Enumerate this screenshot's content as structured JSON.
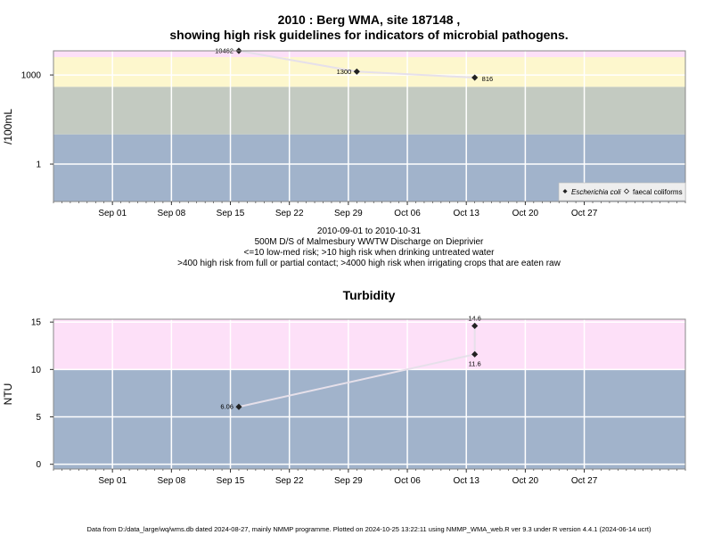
{
  "chart_data": [
    {
      "type": "line",
      "title_line1": "2010 : Berg WMA, site 187148 ,",
      "title_line2": "showing high risk guidelines for indicators of microbial pathogens.",
      "ylabel": "/100mL",
      "yscale": "log",
      "xlim": [
        "2010-08-25",
        "2010-11-08"
      ],
      "ylim": [
        0.055,
        6500
      ],
      "y_ticks": [
        {
          "value": 1,
          "label": "1"
        },
        {
          "value": 1000,
          "label": "1000"
        }
      ],
      "x_ticks": [
        {
          "date": "2010-09-01",
          "label": "Sep 01"
        },
        {
          "date": "2010-09-08",
          "label": "Sep 08"
        },
        {
          "date": "2010-09-15",
          "label": "Sep 15"
        },
        {
          "date": "2010-09-22",
          "label": "Sep 22"
        },
        {
          "date": "2010-09-29",
          "label": "Sep 29"
        },
        {
          "date": "2010-10-06",
          "label": "Oct 06"
        },
        {
          "date": "2010-10-13",
          "label": "Oct 13"
        },
        {
          "date": "2010-10-20",
          "label": "Oct 20"
        },
        {
          "date": "2010-10-27",
          "label": "Oct 27"
        }
      ],
      "bands": [
        {
          "from": 0.055,
          "to": 10,
          "color": "#a1b3cb"
        },
        {
          "from": 10,
          "to": 400,
          "color": "#c3cac1"
        },
        {
          "from": 400,
          "to": 4000,
          "color": "#fdf7cd"
        },
        {
          "from": 4000,
          "to": 6500,
          "color": "#fde0f8"
        }
      ],
      "series": [
        {
          "name": "Escherichia coli",
          "marker": "filled-diamond",
          "points": [
            {
              "date": "2010-09-16",
              "value": 10462,
              "label": "10462",
              "label_side": "left"
            },
            {
              "date": "2010-09-30",
              "value": 1300,
              "label": "1300",
              "label_side": "left"
            },
            {
              "date": "2010-10-14",
              "value": 816,
              "label": "816",
              "label_side": "right"
            }
          ]
        },
        {
          "name": "faecal coliforms",
          "marker": "open-diamond",
          "points": []
        }
      ],
      "legend_position": "bottom-right",
      "caption_lines": [
        "2010-09-01 to 2010-10-31",
        "500M D/S of Malmesbury WWTW Discharge on Dieprivier",
        "<=10 low-med risk; >10 high risk when drinking untreated water",
        ">400 high risk from full or partial contact; >4000 high risk when irrigating crops that are eaten raw"
      ]
    },
    {
      "type": "line",
      "title": "Turbidity",
      "ylabel": "NTU",
      "yscale": "linear",
      "xlim": [
        "2010-08-25",
        "2010-11-08"
      ],
      "ylim": [
        -0.5,
        15.3
      ],
      "y_ticks": [
        {
          "value": 0,
          "label": "0"
        },
        {
          "value": 5,
          "label": "5"
        },
        {
          "value": 10,
          "label": "10"
        },
        {
          "value": 15,
          "label": "15"
        }
      ],
      "x_ticks": [
        {
          "date": "2010-09-01",
          "label": "Sep 01"
        },
        {
          "date": "2010-09-08",
          "label": "Sep 08"
        },
        {
          "date": "2010-09-15",
          "label": "Sep 15"
        },
        {
          "date": "2010-09-22",
          "label": "Sep 22"
        },
        {
          "date": "2010-09-29",
          "label": "Sep 29"
        },
        {
          "date": "2010-10-06",
          "label": "Oct 06"
        },
        {
          "date": "2010-10-13",
          "label": "Oct 13"
        },
        {
          "date": "2010-10-20",
          "label": "Oct 20"
        },
        {
          "date": "2010-10-27",
          "label": "Oct 27"
        }
      ],
      "bands": [
        {
          "from": -0.5,
          "to": 10,
          "color": "#a1b3cb"
        },
        {
          "from": 10,
          "to": 15.3,
          "color": "#fde0f8"
        }
      ],
      "series": [
        {
          "name": "",
          "marker": "filled-diamond",
          "points": [
            {
              "date": "2010-09-16",
              "value": 6.06,
              "label": "6.06",
              "label_side": "left"
            },
            {
              "date": "2010-10-14",
              "value": 11.6,
              "label": "11.6",
              "label_side": "below"
            },
            {
              "date": "2010-10-14",
              "value": 14.6,
              "label": "14.6",
              "label_side": "above"
            }
          ]
        }
      ]
    }
  ],
  "footer": "Data from D:/data_large/wq/wms.db dated 2024-08-27, mainly NMMP programme. Plotted on 2024-10-25 13:22:11 using NMMP_WMA_web.R ver 9.3 under R version 4.4.1 (2024-06-14 ucrt)"
}
